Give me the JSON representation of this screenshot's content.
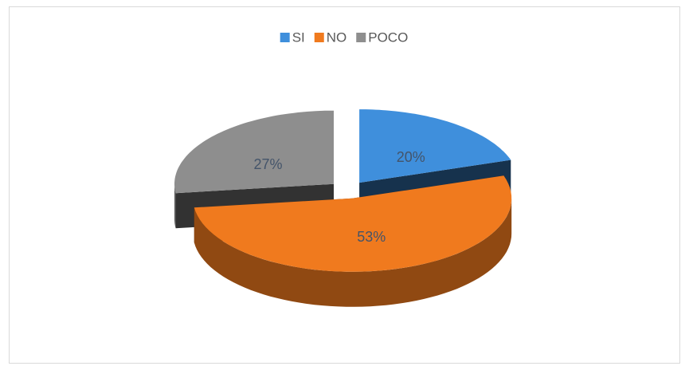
{
  "chart_data": {
    "type": "pie",
    "categories": [
      "SI",
      "NO",
      "POCO"
    ],
    "values": [
      20,
      53,
      27
    ],
    "value_labels": [
      "20%",
      "53%",
      "27%"
    ],
    "colors": [
      "#3f8fdc",
      "#f07a1e",
      "#8e8e8e"
    ],
    "legend": "top"
  }
}
